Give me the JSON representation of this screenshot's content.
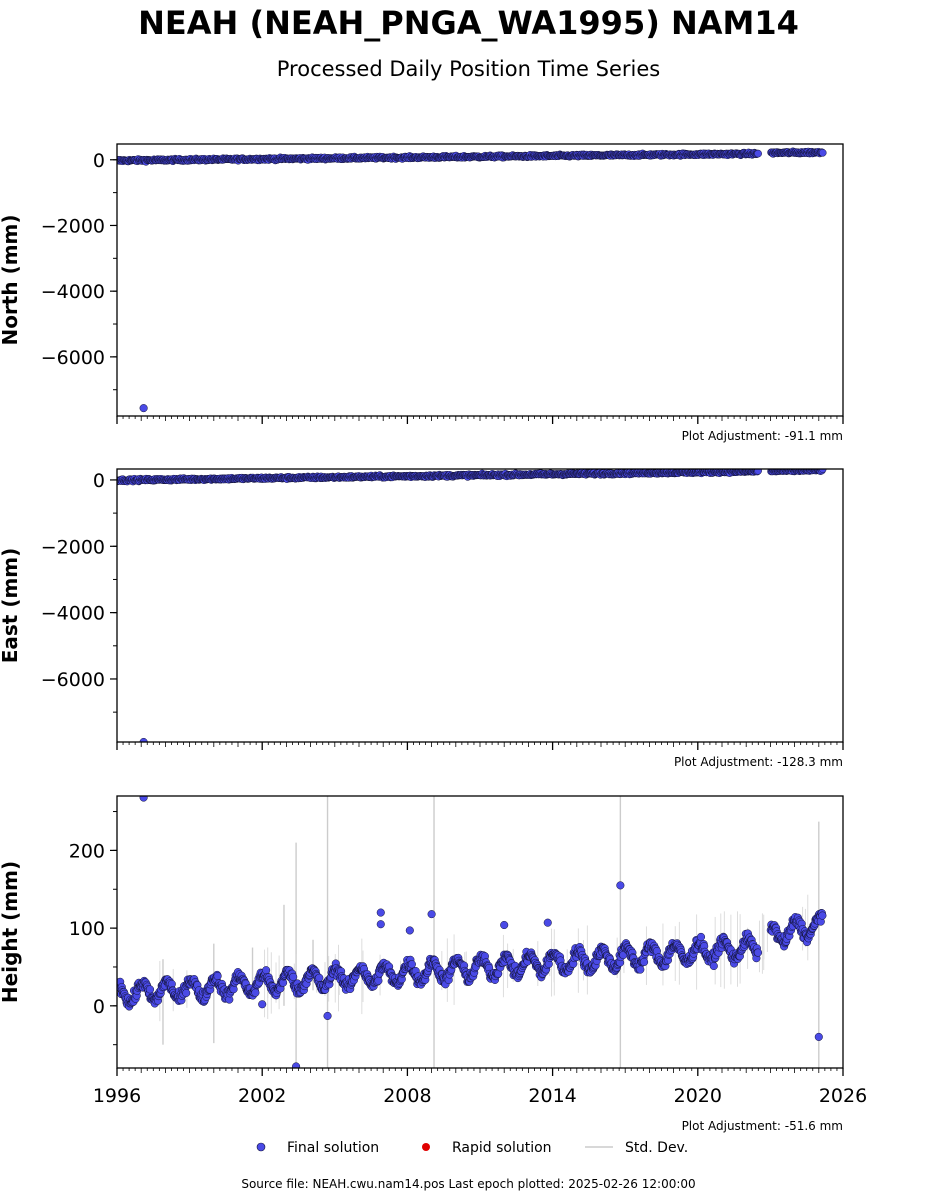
{
  "header": {
    "title": "NEAH (NEAH_PNGA_WA1995) NAM14",
    "subtitle": "Processed Daily Position Time Series"
  },
  "colors": {
    "final": "#4a4ae6",
    "final_edge": "#111133",
    "rapid": "#e00000",
    "stddev": "#cccccc",
    "axes": "#000000"
  },
  "legend": {
    "final_label": "Final solution",
    "rapid_label": "Rapid solution",
    "stddev_label": "Std. Dev."
  },
  "footer": {
    "source_text": "Source file: NEAH.cwu.nam14.pos  Last epoch plotted: 2025-02-26 12:00:00"
  },
  "chart_data": [
    {
      "type": "scatter",
      "ylabel": "North (mm)",
      "adjustment_text": "Plot Adjustment: -91.1 mm",
      "xlim": [
        1996,
        2026
      ],
      "ylim": [
        -7800,
        480
      ],
      "yticks": [
        0,
        -2000,
        -4000,
        -6000
      ],
      "ytick_labels": [
        "0",
        "−2000",
        "−4000",
        "−6000"
      ],
      "trend": {
        "x": [
          1996.0,
          2022.5,
          2023.0,
          2025.15
        ],
        "y": [
          -25,
          185,
          210,
          225
        ]
      },
      "outliers": [
        {
          "x": 1997.1,
          "y": -7560
        }
      ]
    },
    {
      "type": "scatter",
      "ylabel": "East (mm)",
      "adjustment_text": "Plot Adjustment: -128.3 mm",
      "xlim": [
        1996,
        2026
      ],
      "ylim": [
        -7900,
        330
      ],
      "yticks": [
        0,
        -2000,
        -4000,
        -6000
      ],
      "ytick_labels": [
        "0",
        "−2000",
        "−4000",
        "−6000"
      ],
      "trend": {
        "x": [
          1996.0,
          2022.5,
          2023.0,
          2025.15
        ],
        "y": [
          -10,
          260,
          270,
          300
        ]
      },
      "outliers": [
        {
          "x": 1997.1,
          "y": -7900
        }
      ]
    },
    {
      "type": "scatter",
      "ylabel": "Height (mm)",
      "adjustment_text": "Plot Adjustment: -51.6 mm",
      "xlim": [
        1996,
        2026
      ],
      "ylim": [
        -80,
        270
      ],
      "yticks": [
        200,
        100,
        0
      ],
      "ytick_labels": [
        "200",
        "100",
        "0"
      ],
      "xticks": [
        1996,
        2002,
        2008,
        2014,
        2020,
        2026
      ],
      "xtick_labels": [
        "1996",
        "2002",
        "2008",
        "2014",
        "2020",
        "2026"
      ],
      "trend": {
        "x": [
          1996.0,
          2022.5,
          2023.0,
          2025.15
        ],
        "y": [
          15,
          75,
          90,
          105
        ]
      },
      "seasonal_amplitude_mm": 12,
      "outliers": [
        {
          "x": 1997.1,
          "y": 268
        },
        {
          "x": 2016.8,
          "y": 155
        },
        {
          "x": 2004.7,
          "y": -13
        },
        {
          "x": 2025.0,
          "y": -40
        },
        {
          "x": 2003.4,
          "y": -78
        },
        {
          "x": 2002.0,
          "y": 2
        },
        {
          "x": 2006.9,
          "y": 120
        },
        {
          "x": 2006.9,
          "y": 105
        },
        {
          "x": 2008.1,
          "y": 97
        },
        {
          "x": 2009.0,
          "y": 118
        },
        {
          "x": 2012.0,
          "y": 104
        },
        {
          "x": 2013.8,
          "y": 107
        }
      ],
      "stddev_bars": [
        {
          "x": 2003.4,
          "y0": -80,
          "y1": 210
        },
        {
          "x": 2004.7,
          "y0": -80,
          "y1": 270
        },
        {
          "x": 2009.1,
          "y0": -80,
          "y1": 270
        },
        {
          "x": 2016.8,
          "y0": -80,
          "y1": 270
        },
        {
          "x": 2025.0,
          "y0": -80,
          "y1": 237
        },
        {
          "x": 2002.9,
          "y0": 0,
          "y1": 130
        },
        {
          "x": 2000.0,
          "y0": -48,
          "y1": 80
        },
        {
          "x": 1997.9,
          "y0": -50,
          "y1": 60
        },
        {
          "x": 2001.6,
          "y0": 30,
          "y1": 75
        },
        {
          "x": 2004.1,
          "y0": 20,
          "y1": 85
        }
      ]
    }
  ]
}
